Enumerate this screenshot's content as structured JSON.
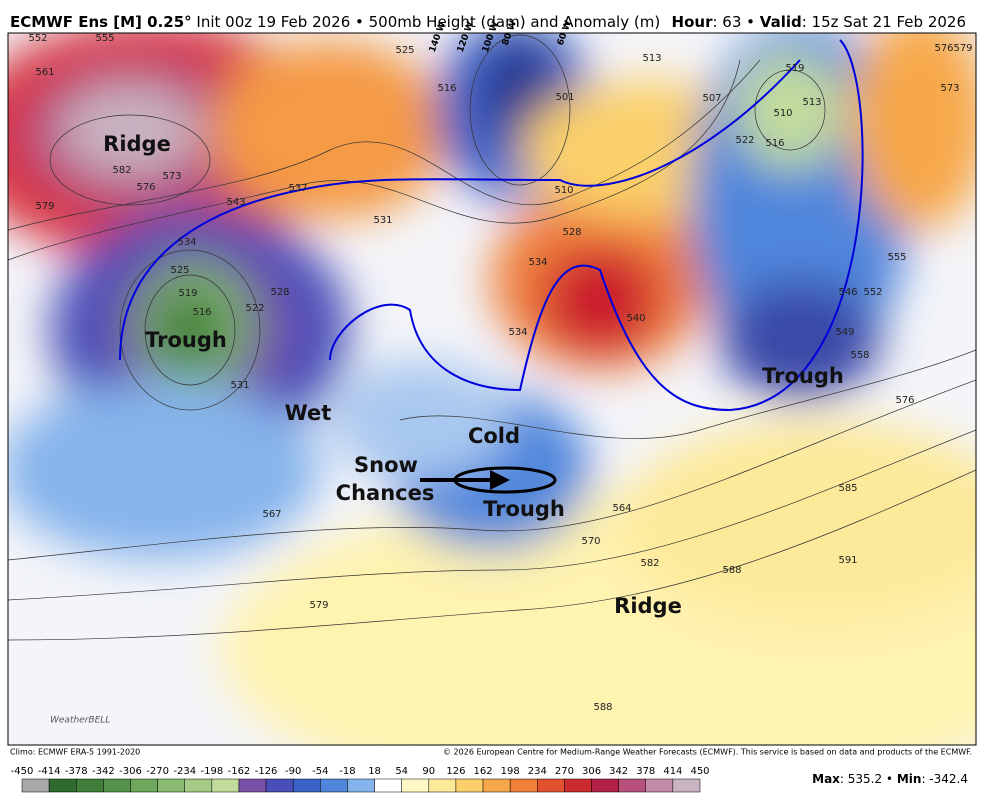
{
  "header": {
    "model": "ECMWF Ens [M] 0.25°",
    "description": "Init 00z 19 Feb 2026 • 500mb Height (dam) and Anomaly (m)",
    "hour_label": "Hour",
    "hour_value": ": 63 •",
    "valid_label": "Valid",
    "valid_value": ": 15z Sat 21 Feb 2026"
  },
  "annotations": [
    "Ridge",
    "Trough",
    "Wet",
    "Cold",
    "Snow",
    "Chances",
    "Trough",
    "Trough",
    "Ridge"
  ],
  "longitude_labels": [
    "140 W",
    "120 W",
    "100 W",
    "80 W",
    "60 W"
  ],
  "contour_labels": [
    "552",
    "555",
    "561",
    "582",
    "576",
    "573",
    "579",
    "543",
    "537",
    "534",
    "525",
    "519",
    "516",
    "522",
    "528",
    "531",
    "525",
    "516",
    "513",
    "507",
    "501",
    "510",
    "528",
    "534",
    "534",
    "540",
    "531",
    "519",
    "510",
    "513",
    "516",
    "522",
    "576",
    "579",
    "573",
    "555",
    "546",
    "552",
    "549",
    "558",
    "576",
    "585",
    "591",
    "588",
    "582",
    "579",
    "567",
    "570",
    "564",
    "588"
  ],
  "logo": "WeatherBELL",
  "footer": {
    "climo": "Climo: ECMWF ERA-5 1991-2020",
    "copyright": "© 2026 European Centre for Medium-Range Weather Forecasts (ECMWF). This service is based on data and products of the ECMWF."
  },
  "colorbar": {
    "ticks": [
      -450,
      -414,
      -378,
      -342,
      -306,
      -270,
      -234,
      -198,
      -162,
      -126,
      -90,
      -54,
      -18,
      18,
      54,
      90,
      126,
      162,
      198,
      234,
      270,
      306,
      342,
      378,
      414,
      450
    ],
    "colors": [
      "#a9a9a9",
      "#2f6b2f",
      "#3f7f3a",
      "#55934a",
      "#6ea85c",
      "#89bb70",
      "#a5cc86",
      "#c2dc9c",
      "#7a4fa8",
      "#4a4fb8",
      "#3a62c8",
      "#4f86dc",
      "#85b4ec",
      "#ffffff",
      "#fff8c4",
      "#fde99a",
      "#fbd06a",
      "#f7a84a",
      "#f07f3a",
      "#e2502e",
      "#cc2a2e",
      "#b32047",
      "#b8507c",
      "#c58aa8",
      "#c9b4c2"
    ]
  },
  "stats": {
    "max_label": "Max",
    "max_value": ": 535.2 •",
    "min_label": "Min",
    "min_value": ": -342.4"
  }
}
